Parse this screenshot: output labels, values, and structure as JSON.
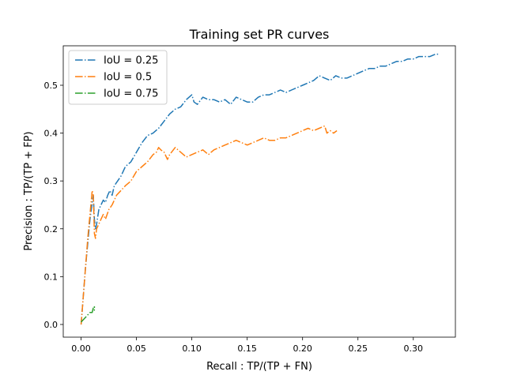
{
  "chart_data": {
    "type": "line",
    "title": "Training set PR curves",
    "xlabel": "Recall : TP/(TP + FN)",
    "ylabel": "Precision : TP/(TP + FP)",
    "xlim": [
      -0.0161,
      0.338
    ],
    "ylim": [
      -0.0265,
      0.5825
    ],
    "grid": false,
    "legend_position": "top-left",
    "x_ticks": [
      0.0,
      0.05,
      0.1,
      0.15,
      0.2,
      0.25,
      0.3
    ],
    "x_tick_labels": [
      "0.00",
      "0.05",
      "0.10",
      "0.15",
      "0.20",
      "0.25",
      "0.30"
    ],
    "y_ticks": [
      0.0,
      0.1,
      0.2,
      0.3,
      0.4,
      0.5
    ],
    "y_tick_labels": [
      "0.0",
      "0.1",
      "0.2",
      "0.3",
      "0.4",
      "0.5"
    ],
    "series": [
      {
        "name": "IoU = 0.25",
        "color": "#1f77b4",
        "x": [
          0.0,
          0.002,
          0.004,
          0.006,
          0.008,
          0.01,
          0.011,
          0.012,
          0.013,
          0.014,
          0.016,
          0.018,
          0.02,
          0.022,
          0.024,
          0.026,
          0.028,
          0.03,
          0.033,
          0.036,
          0.04,
          0.045,
          0.05,
          0.055,
          0.06,
          0.065,
          0.07,
          0.075,
          0.08,
          0.085,
          0.09,
          0.095,
          0.1,
          0.102,
          0.105,
          0.11,
          0.115,
          0.12,
          0.125,
          0.13,
          0.135,
          0.14,
          0.145,
          0.15,
          0.155,
          0.16,
          0.165,
          0.17,
          0.175,
          0.18,
          0.185,
          0.19,
          0.195,
          0.2,
          0.205,
          0.21,
          0.215,
          0.22,
          0.225,
          0.23,
          0.235,
          0.24,
          0.245,
          0.25,
          0.255,
          0.26,
          0.265,
          0.27,
          0.275,
          0.28,
          0.285,
          0.29,
          0.295,
          0.3,
          0.305,
          0.31,
          0.315,
          0.32,
          0.323
        ],
        "y": [
          0.0,
          0.06,
          0.12,
          0.17,
          0.22,
          0.255,
          0.27,
          0.22,
          0.2,
          0.21,
          0.24,
          0.25,
          0.26,
          0.255,
          0.27,
          0.28,
          0.27,
          0.29,
          0.3,
          0.31,
          0.33,
          0.34,
          0.36,
          0.38,
          0.395,
          0.4,
          0.41,
          0.425,
          0.44,
          0.45,
          0.455,
          0.47,
          0.48,
          0.465,
          0.46,
          0.475,
          0.47,
          0.47,
          0.465,
          0.47,
          0.46,
          0.475,
          0.47,
          0.465,
          0.465,
          0.475,
          0.48,
          0.48,
          0.485,
          0.49,
          0.485,
          0.49,
          0.495,
          0.5,
          0.505,
          0.51,
          0.52,
          0.515,
          0.51,
          0.52,
          0.515,
          0.515,
          0.52,
          0.525,
          0.53,
          0.535,
          0.535,
          0.54,
          0.54,
          0.545,
          0.55,
          0.55,
          0.555,
          0.555,
          0.56,
          0.56,
          0.56,
          0.565,
          0.565
        ]
      },
      {
        "name": "IoU = 0.5",
        "color": "#ff7f0e",
        "x": [
          0.0,
          0.002,
          0.004,
          0.006,
          0.008,
          0.01,
          0.011,
          0.012,
          0.013,
          0.014,
          0.016,
          0.018,
          0.02,
          0.022,
          0.025,
          0.028,
          0.032,
          0.036,
          0.04,
          0.045,
          0.05,
          0.055,
          0.06,
          0.065,
          0.068,
          0.07,
          0.072,
          0.075,
          0.078,
          0.08,
          0.085,
          0.09,
          0.095,
          0.1,
          0.105,
          0.11,
          0.115,
          0.12,
          0.125,
          0.13,
          0.135,
          0.14,
          0.145,
          0.15,
          0.155,
          0.16,
          0.165,
          0.17,
          0.175,
          0.18,
          0.185,
          0.19,
          0.195,
          0.2,
          0.205,
          0.21,
          0.215,
          0.22,
          0.222,
          0.225,
          0.228,
          0.231
        ],
        "y": [
          0.0,
          0.06,
          0.12,
          0.18,
          0.23,
          0.28,
          0.27,
          0.19,
          0.18,
          0.2,
          0.21,
          0.22,
          0.23,
          0.22,
          0.24,
          0.25,
          0.27,
          0.28,
          0.29,
          0.3,
          0.32,
          0.33,
          0.34,
          0.355,
          0.36,
          0.37,
          0.365,
          0.36,
          0.345,
          0.355,
          0.37,
          0.36,
          0.35,
          0.355,
          0.36,
          0.365,
          0.355,
          0.365,
          0.37,
          0.375,
          0.38,
          0.385,
          0.38,
          0.375,
          0.38,
          0.385,
          0.39,
          0.385,
          0.385,
          0.39,
          0.39,
          0.395,
          0.4,
          0.405,
          0.41,
          0.405,
          0.41,
          0.415,
          0.4,
          0.405,
          0.4,
          0.405
        ]
      },
      {
        "name": "IoU = 0.75",
        "color": "#2ca02c",
        "x": [
          0.0,
          0.002,
          0.004,
          0.006,
          0.008,
          0.01,
          0.011,
          0.012,
          0.012
        ],
        "y": [
          0.005,
          0.01,
          0.015,
          0.02,
          0.025,
          0.025,
          0.035,
          0.03,
          0.038
        ]
      }
    ]
  }
}
